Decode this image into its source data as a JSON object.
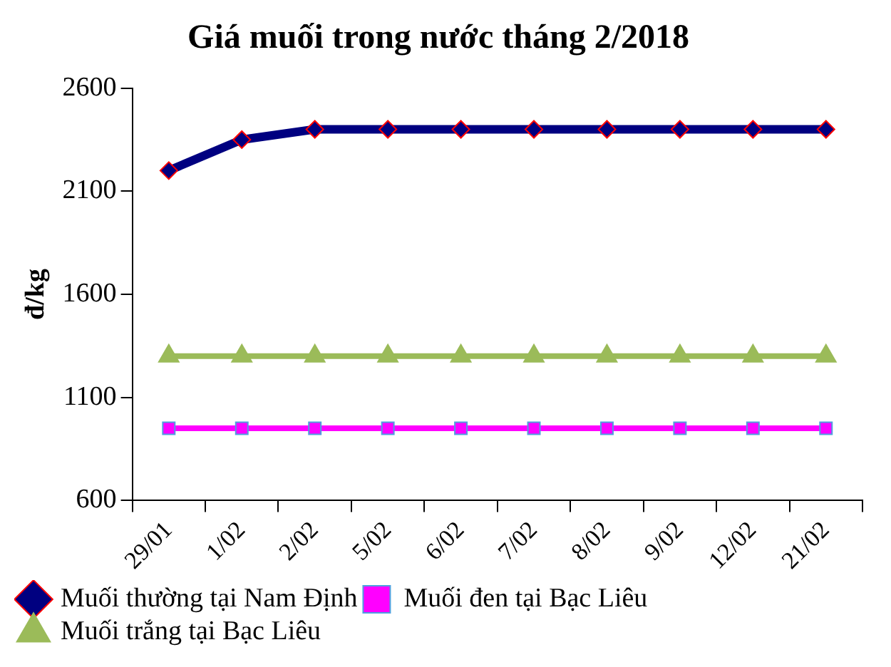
{
  "chart_data": {
    "type": "line",
    "title": "Giá muối trong nước tháng 2/2018",
    "ylabel": "đ/kg",
    "categories": [
      "29/01",
      "1/02",
      "2/02",
      "5/02",
      "6/02",
      "7/02",
      "8/02",
      "9/02",
      "12/02",
      "21/02"
    ],
    "series": [
      {
        "name": "Muối thường tại Nam Định",
        "color": "#000080",
        "marker": "diamond",
        "values": [
          2200,
          2350,
          2400,
          2400,
          2400,
          2400,
          2400,
          2400,
          2400,
          2400
        ]
      },
      {
        "name": "Muối đen tại Bạc Liêu",
        "color": "#ff00ff",
        "marker": "square",
        "values": [
          950,
          950,
          950,
          950,
          950,
          950,
          950,
          950,
          950,
          950
        ]
      },
      {
        "name": "Muối trắng tại Bạc Liêu",
        "color": "#9bbb59",
        "marker": "triangle",
        "values": [
          1300,
          1300,
          1300,
          1300,
          1300,
          1300,
          1300,
          1300,
          1300,
          1300
        ]
      }
    ],
    "ylim": [
      600,
      2600
    ],
    "yticks": [
      600,
      1100,
      1600,
      2100,
      2600
    ],
    "grid": false,
    "legend": "bottom",
    "line_style": "solid"
  }
}
